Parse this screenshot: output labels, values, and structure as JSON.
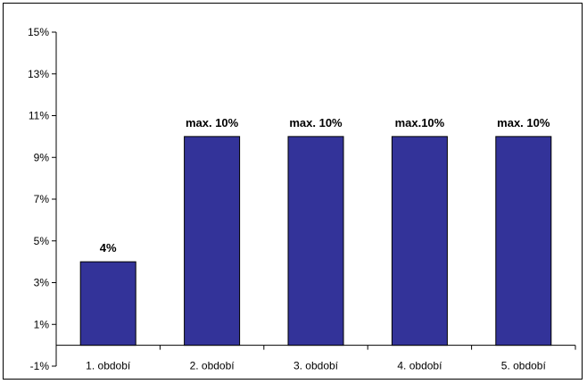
{
  "chart_data": {
    "type": "bar",
    "categories": [
      "1. období",
      "2. období",
      "3. období",
      "4. období",
      "5. období"
    ],
    "values": [
      4,
      10,
      10,
      10,
      10
    ],
    "data_labels": [
      "4%",
      "max. 10%",
      "max. 10%",
      "max.10%",
      "max. 10%"
    ],
    "y_ticks": [
      -1,
      1,
      3,
      5,
      7,
      9,
      11,
      13,
      15
    ],
    "y_tick_labels": [
      "-1%",
      "1%",
      "3%",
      "5%",
      "7%",
      "9%",
      "11%",
      "13%",
      "15%"
    ],
    "ylim": [
      -1,
      15
    ],
    "grid": false,
    "legend": "none",
    "colors": {
      "bar_fill": "#333399",
      "bar_stroke": "#000000",
      "axis": "#000000"
    }
  }
}
